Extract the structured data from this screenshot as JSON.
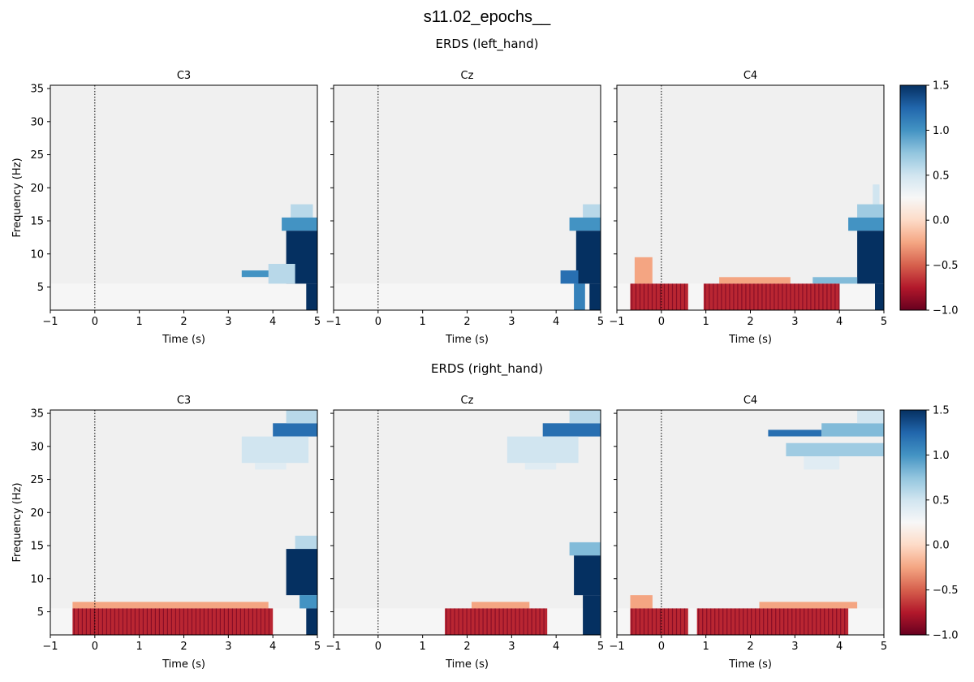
{
  "figure": {
    "suptitle": "s11.02_epochs__"
  },
  "colors": {
    "cmap": "RdBu",
    "baseline": "#f0f0f0",
    "onset_line": "#000000"
  },
  "chart_data": [
    {
      "type": "heatmap",
      "title": "ERDS (left_hand)",
      "xlabel": "Time (s)",
      "ylabel": "Frequency (Hz)",
      "xlim": [
        -1,
        5
      ],
      "ylim": [
        1.5,
        35.5
      ],
      "xticks": [
        "−1",
        "0",
        "1",
        "2",
        "3",
        "4",
        "5"
      ],
      "yticks": [
        "5",
        "10",
        "15",
        "20",
        "25",
        "30",
        "35"
      ],
      "colorbar": {
        "vmin": -1.0,
        "vmax": 1.5,
        "ticks": [
          "−1.0",
          "−0.5",
          "0.0",
          "0.5",
          "1.0",
          "1.5"
        ]
      },
      "event_onset": 0,
      "panels": [
        {
          "channel": "C3",
          "patches": [
            {
              "t": [
                4.4,
                4.9
              ],
              "f": [
                15.5,
                17.5
              ],
              "v": 0.6
            },
            {
              "t": [
                4.2,
                5.0
              ],
              "f": [
                13.5,
                15.5
              ],
              "v": 1.0
            },
            {
              "t": [
                4.3,
                5.0
              ],
              "f": [
                5.5,
                13.5
              ],
              "v": 1.5
            },
            {
              "t": [
                3.3,
                4.4
              ],
              "f": [
                6.5,
                7.5
              ],
              "v": 1.0
            },
            {
              "t": [
                3.9,
                4.5
              ],
              "f": [
                5.5,
                8.5
              ],
              "v": 0.6
            },
            {
              "t": [
                4.75,
                5.0
              ],
              "f": [
                1.5,
                5.5
              ],
              "v": 1.5
            }
          ]
        },
        {
          "channel": "Cz",
          "patches": [
            {
              "t": [
                4.6,
                5.0
              ],
              "f": [
                15.5,
                17.5
              ],
              "v": 0.6
            },
            {
              "t": [
                4.3,
                5.0
              ],
              "f": [
                13.5,
                15.5
              ],
              "v": 1.0
            },
            {
              "t": [
                4.45,
                5.0
              ],
              "f": [
                5.5,
                13.5
              ],
              "v": 1.5
            },
            {
              "t": [
                4.1,
                4.5
              ],
              "f": [
                5.5,
                7.5
              ],
              "v": 1.2
            },
            {
              "t": [
                4.4,
                4.65
              ],
              "f": [
                1.5,
                5.5
              ],
              "v": 1.1
            },
            {
              "t": [
                4.75,
                5.0
              ],
              "f": [
                1.5,
                5.5
              ],
              "v": 1.5
            }
          ]
        },
        {
          "channel": "C4",
          "patches": [
            {
              "t": [
                4.75,
                4.9
              ],
              "f": [
                17.5,
                20.5
              ],
              "v": 0.5
            },
            {
              "t": [
                4.4,
                5.0
              ],
              "f": [
                15.5,
                17.5
              ],
              "v": 0.7
            },
            {
              "t": [
                4.2,
                5.0
              ],
              "f": [
                13.5,
                15.5
              ],
              "v": 1.0
            },
            {
              "t": [
                4.4,
                5.0
              ],
              "f": [
                5.5,
                13.5
              ],
              "v": 1.5
            },
            {
              "t": [
                3.4,
                4.4
              ],
              "f": [
                5.5,
                6.5
              ],
              "v": 0.8
            },
            {
              "t": [
                4.8,
                5.0
              ],
              "f": [
                1.5,
                5.5
              ],
              "v": 1.5
            },
            {
              "t": [
                -0.6,
                -0.2
              ],
              "f": [
                5.5,
                9.5
              ],
              "v": -0.25
            },
            {
              "t": [
                -0.7,
                0.6
              ],
              "f": [
                1.5,
                5.5
              ],
              "v": -0.7
            },
            {
              "t": [
                1.3,
                2.9
              ],
              "f": [
                5.5,
                6.5
              ],
              "v": -0.25
            },
            {
              "t": [
                0.95,
                4.0
              ],
              "f": [
                1.5,
                5.5
              ],
              "v": -0.7
            }
          ]
        }
      ]
    },
    {
      "type": "heatmap",
      "title": "ERDS (right_hand)",
      "xlabel": "Time (s)",
      "ylabel": "Frequency (Hz)",
      "xlim": [
        -1,
        5
      ],
      "ylim": [
        1.5,
        35.5
      ],
      "xticks": [
        "−1",
        "0",
        "1",
        "2",
        "3",
        "4",
        "5"
      ],
      "yticks": [
        "5",
        "10",
        "15",
        "20",
        "25",
        "30",
        "35"
      ],
      "colorbar": {
        "vmin": -1.0,
        "vmax": 1.5,
        "ticks": [
          "−1.0",
          "−0.5",
          "0.0",
          "0.5",
          "1.0",
          "1.5"
        ]
      },
      "event_onset": 0,
      "panels": [
        {
          "channel": "C3",
          "patches": [
            {
              "t": [
                4.0,
                5.0
              ],
              "f": [
                31.5,
                33.5
              ],
              "v": 1.2
            },
            {
              "t": [
                4.3,
                5.0
              ],
              "f": [
                33.5,
                35.5
              ],
              "v": 0.6
            },
            {
              "t": [
                3.3,
                4.8
              ],
              "f": [
                27.5,
                31.5
              ],
              "v": 0.5
            },
            {
              "t": [
                3.6,
                4.3
              ],
              "f": [
                26.5,
                27.5
              ],
              "v": 0.4
            },
            {
              "t": [
                4.5,
                5.0
              ],
              "f": [
                14.5,
                16.5
              ],
              "v": 0.6
            },
            {
              "t": [
                4.3,
                5.0
              ],
              "f": [
                7.5,
                14.5
              ],
              "v": 1.5
            },
            {
              "t": [
                4.6,
                5.0
              ],
              "f": [
                5.5,
                7.5
              ],
              "v": 1.0
            },
            {
              "t": [
                4.75,
                5.0
              ],
              "f": [
                1.5,
                5.5
              ],
              "v": 1.5
            },
            {
              "t": [
                -0.5,
                3.9
              ],
              "f": [
                5.5,
                6.5
              ],
              "v": -0.25
            },
            {
              "t": [
                -0.5,
                4.0
              ],
              "f": [
                1.5,
                5.5
              ],
              "v": -0.7
            }
          ]
        },
        {
          "channel": "Cz",
          "patches": [
            {
              "t": [
                3.7,
                5.0
              ],
              "f": [
                31.5,
                33.5
              ],
              "v": 1.2
            },
            {
              "t": [
                4.3,
                5.0
              ],
              "f": [
                33.5,
                35.5
              ],
              "v": 0.6
            },
            {
              "t": [
                2.9,
                4.5
              ],
              "f": [
                27.5,
                31.5
              ],
              "v": 0.5
            },
            {
              "t": [
                3.3,
                4.0
              ],
              "f": [
                26.5,
                27.5
              ],
              "v": 0.4
            },
            {
              "t": [
                4.3,
                5.0
              ],
              "f": [
                13.5,
                15.5
              ],
              "v": 0.8
            },
            {
              "t": [
                4.4,
                5.0
              ],
              "f": [
                7.5,
                13.5
              ],
              "v": 1.5
            },
            {
              "t": [
                4.6,
                5.0
              ],
              "f": [
                1.5,
                7.5
              ],
              "v": 1.5
            },
            {
              "t": [
                2.1,
                3.4
              ],
              "f": [
                5.5,
                6.5
              ],
              "v": -0.25
            },
            {
              "t": [
                1.5,
                3.8
              ],
              "f": [
                1.5,
                5.5
              ],
              "v": -0.7
            }
          ]
        },
        {
          "channel": "C4",
          "patches": [
            {
              "t": [
                2.4,
                3.6
              ],
              "f": [
                31.5,
                32.5
              ],
              "v": 1.2
            },
            {
              "t": [
                3.6,
                5.0
              ],
              "f": [
                31.5,
                33.5
              ],
              "v": 0.8
            },
            {
              "t": [
                4.4,
                5.0
              ],
              "f": [
                33.5,
                35.5
              ],
              "v": 0.5
            },
            {
              "t": [
                2.8,
                5.0
              ],
              "f": [
                28.5,
                30.5
              ],
              "v": 0.7
            },
            {
              "t": [
                3.2,
                4.0
              ],
              "f": [
                26.5,
                28.5
              ],
              "v": 0.4
            },
            {
              "t": [
                -0.7,
                -0.2
              ],
              "f": [
                5.5,
                7.5
              ],
              "v": -0.25
            },
            {
              "t": [
                -0.7,
                0.6
              ],
              "f": [
                1.5,
                5.5
              ],
              "v": -0.7
            },
            {
              "t": [
                2.2,
                4.4
              ],
              "f": [
                5.5,
                6.5
              ],
              "v": -0.25
            },
            {
              "t": [
                0.8,
                4.2
              ],
              "f": [
                1.5,
                5.5
              ],
              "v": -0.7
            }
          ]
        }
      ]
    }
  ]
}
